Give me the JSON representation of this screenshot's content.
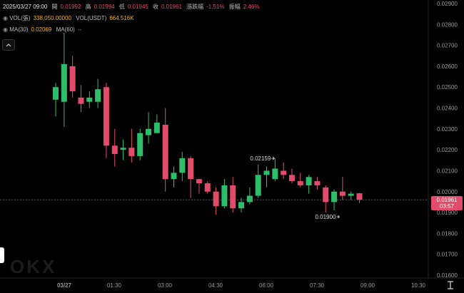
{
  "header": {
    "datetime": "2025/03/27 09:00",
    "open_label": "開",
    "open_value": "0.01992",
    "high_label": "高",
    "high_value": "0.01994",
    "low_label": "低",
    "low_value": "0.01945",
    "close_label": "收",
    "close_value": "0.01961",
    "change_label": "漲跌幅",
    "change_value": "-1.51%",
    "amplitude_label": "振幅",
    "amplitude_value": "2.46%",
    "vol_label": "VOL(張)",
    "vol_value": "338,050.00000",
    "vol_usdt_label": "VOL(USDT)",
    "vol_usdt_value": "664.516K",
    "ma30_label": "MA(30)",
    "ma30_value": "0.02069",
    "ma60_label": "MA(60)",
    "ma60_value": "--"
  },
  "price_tag": {
    "price": "0.01961",
    "countdown": "03:57"
  },
  "annotations": {
    "high": "0.02159",
    "low": "0.01900"
  },
  "watermark": "OKX",
  "colors": {
    "up": "#2ebd6b",
    "down": "#e34b6a",
    "background": "#000000",
    "ma30": "#f0b90b"
  },
  "chart_data": {
    "type": "candlestick",
    "y_ticks": [
      "0.02900",
      "0.02800",
      "0.02700",
      "0.02600",
      "0.02500",
      "0.02400",
      "0.02300",
      "0.02200",
      "0.02100",
      "0.02000",
      "0.01900",
      "0.01800",
      "0.01700",
      "0.01600"
    ],
    "ylim": [
      0.0158,
      0.0292
    ],
    "x_ticks": [
      "03/27",
      "01:30",
      "03:00",
      "04:30",
      "06:00",
      "07:30",
      "09:00",
      "10:30"
    ],
    "current_price": 0.01961,
    "candles": [
      {
        "o": 0.0244,
        "h": 0.0252,
        "l": 0.0236,
        "c": 0.025
      },
      {
        "o": 0.0243,
        "h": 0.0276,
        "l": 0.0231,
        "c": 0.0261
      },
      {
        "o": 0.026,
        "h": 0.0265,
        "l": 0.0245,
        "c": 0.0248
      },
      {
        "o": 0.0245,
        "h": 0.0251,
        "l": 0.0238,
        "c": 0.0242
      },
      {
        "o": 0.0243,
        "h": 0.0248,
        "l": 0.024,
        "c": 0.0245
      },
      {
        "o": 0.0243,
        "h": 0.0254,
        "l": 0.024,
        "c": 0.0249
      },
      {
        "o": 0.025,
        "h": 0.0252,
        "l": 0.0216,
        "c": 0.0222
      },
      {
        "o": 0.0222,
        "h": 0.023,
        "l": 0.0212,
        "c": 0.0218
      },
      {
        "o": 0.022,
        "h": 0.0225,
        "l": 0.0215,
        "c": 0.0221
      },
      {
        "o": 0.0221,
        "h": 0.023,
        "l": 0.0214,
        "c": 0.0217
      },
      {
        "o": 0.0217,
        "h": 0.023,
        "l": 0.0215,
        "c": 0.0228
      },
      {
        "o": 0.0227,
        "h": 0.0238,
        "l": 0.0223,
        "c": 0.023
      },
      {
        "o": 0.0228,
        "h": 0.0237,
        "l": 0.0228,
        "c": 0.0233
      },
      {
        "o": 0.0232,
        "h": 0.024,
        "l": 0.02,
        "c": 0.0206
      },
      {
        "o": 0.0206,
        "h": 0.0212,
        "l": 0.0202,
        "c": 0.0209
      },
      {
        "o": 0.0209,
        "h": 0.0219,
        "l": 0.0205,
        "c": 0.0216
      },
      {
        "o": 0.0216,
        "h": 0.0217,
        "l": 0.0197,
        "c": 0.0206
      },
      {
        "o": 0.0206,
        "h": 0.0206,
        "l": 0.0199,
        "c": 0.0204
      },
      {
        "o": 0.0204,
        "h": 0.0205,
        "l": 0.0199,
        "c": 0.02
      },
      {
        "o": 0.02,
        "h": 0.0202,
        "l": 0.0189,
        "c": 0.0193
      },
      {
        "o": 0.0193,
        "h": 0.0206,
        "l": 0.0192,
        "c": 0.0203
      },
      {
        "o": 0.0203,
        "h": 0.0207,
        "l": 0.019,
        "c": 0.0192
      },
      {
        "o": 0.0192,
        "h": 0.0197,
        "l": 0.019,
        "c": 0.0195
      },
      {
        "o": 0.0195,
        "h": 0.0202,
        "l": 0.0194,
        "c": 0.0198
      },
      {
        "o": 0.0198,
        "h": 0.0213,
        "l": 0.0197,
        "c": 0.0208
      },
      {
        "o": 0.0208,
        "h": 0.0212,
        "l": 0.0202,
        "c": 0.021
      },
      {
        "o": 0.0206,
        "h": 0.02159,
        "l": 0.0205,
        "c": 0.0211
      },
      {
        "o": 0.021,
        "h": 0.0214,
        "l": 0.0206,
        "c": 0.0208
      },
      {
        "o": 0.0208,
        "h": 0.0211,
        "l": 0.0204,
        "c": 0.0205
      },
      {
        "o": 0.0205,
        "h": 0.0209,
        "l": 0.0202,
        "c": 0.0203
      },
      {
        "o": 0.0203,
        "h": 0.0208,
        "l": 0.0199,
        "c": 0.0207
      },
      {
        "o": 0.0205,
        "h": 0.0207,
        "l": 0.0201,
        "c": 0.0203
      },
      {
        "o": 0.0202,
        "h": 0.0203,
        "l": 0.019,
        "c": 0.0195
      },
      {
        "o": 0.0195,
        "h": 0.0201,
        "l": 0.0191,
        "c": 0.02
      },
      {
        "o": 0.02,
        "h": 0.0207,
        "l": 0.0196,
        "c": 0.0198
      },
      {
        "o": 0.0198,
        "h": 0.02,
        "l": 0.0196,
        "c": 0.0199
      },
      {
        "o": 0.01992,
        "h": 0.01994,
        "l": 0.01945,
        "c": 0.01961
      }
    ]
  }
}
